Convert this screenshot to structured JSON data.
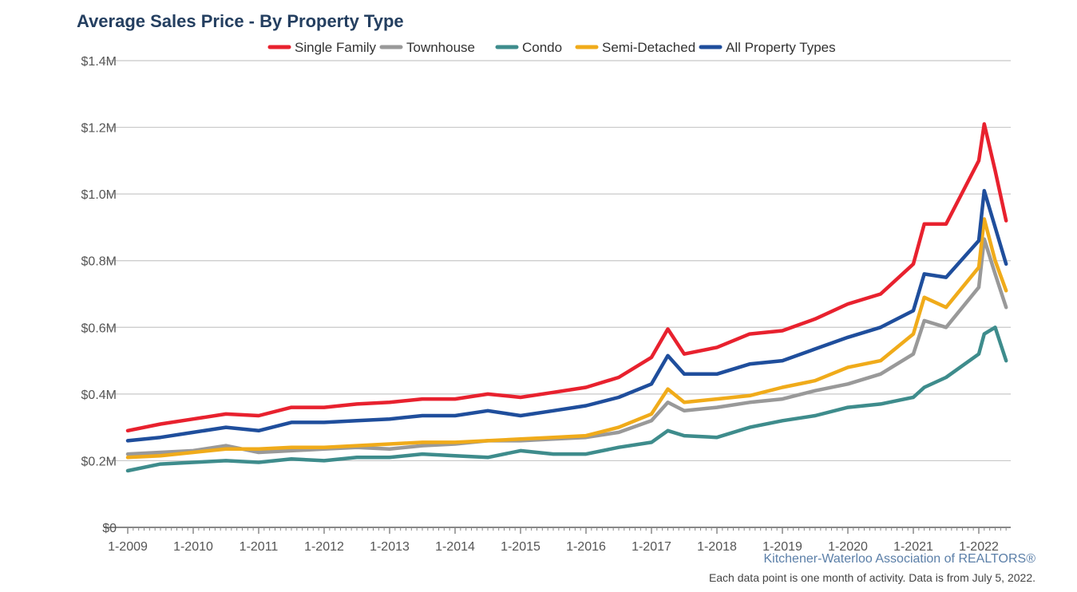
{
  "chart_data": {
    "type": "line",
    "title": "Average Sales Price - By Property Type",
    "source": "Kitchener-Waterloo Association of REALTORS®",
    "note": "Each data point is one month of activity. Data is from July 5, 2022.",
    "y_ticks": [
      "$0",
      "$0.2M",
      "$0.4M",
      "$0.6M",
      "$0.8M",
      "$1.0M",
      "$1.2M",
      "$1.4M"
    ],
    "x_ticks": [
      "1-2009",
      "1-2010",
      "1-2011",
      "1-2012",
      "1-2013",
      "1-2014",
      "1-2015",
      "1-2016",
      "1-2017",
      "1-2018",
      "1-2019",
      "1-2020",
      "1-2021",
      "1-2022"
    ],
    "ylim": [
      0,
      1400000
    ],
    "x_range": [
      "2009-01",
      "2022-06"
    ],
    "grid": true,
    "legend_position": "top-center",
    "series": [
      {
        "name": "Single Family",
        "color": "#e8212e",
        "points": [
          [
            "2009-01",
            290000
          ],
          [
            "2009-07",
            310000
          ],
          [
            "2010-01",
            325000
          ],
          [
            "2010-07",
            340000
          ],
          [
            "2011-01",
            335000
          ],
          [
            "2011-07",
            360000
          ],
          [
            "2012-01",
            360000
          ],
          [
            "2012-07",
            370000
          ],
          [
            "2013-01",
            375000
          ],
          [
            "2013-07",
            385000
          ],
          [
            "2014-01",
            385000
          ],
          [
            "2014-07",
            400000
          ],
          [
            "2015-01",
            390000
          ],
          [
            "2015-07",
            405000
          ],
          [
            "2016-01",
            420000
          ],
          [
            "2016-07",
            450000
          ],
          [
            "2017-01",
            510000
          ],
          [
            "2017-04",
            595000
          ],
          [
            "2017-07",
            520000
          ],
          [
            "2018-01",
            540000
          ],
          [
            "2018-07",
            580000
          ],
          [
            "2019-01",
            590000
          ],
          [
            "2019-07",
            625000
          ],
          [
            "2020-01",
            670000
          ],
          [
            "2020-07",
            700000
          ],
          [
            "2021-01",
            790000
          ],
          [
            "2021-03",
            910000
          ],
          [
            "2021-07",
            910000
          ],
          [
            "2022-01",
            1100000
          ],
          [
            "2022-02",
            1210000
          ],
          [
            "2022-04",
            1070000
          ],
          [
            "2022-06",
            920000
          ]
        ]
      },
      {
        "name": "Townhouse",
        "color": "#999999",
        "points": [
          [
            "2009-01",
            220000
          ],
          [
            "2009-07",
            225000
          ],
          [
            "2010-01",
            230000
          ],
          [
            "2010-07",
            245000
          ],
          [
            "2011-01",
            225000
          ],
          [
            "2011-07",
            230000
          ],
          [
            "2012-01",
            235000
          ],
          [
            "2012-07",
            240000
          ],
          [
            "2013-01",
            235000
          ],
          [
            "2013-07",
            245000
          ],
          [
            "2014-01",
            250000
          ],
          [
            "2014-07",
            260000
          ],
          [
            "2015-01",
            260000
          ],
          [
            "2015-07",
            265000
          ],
          [
            "2016-01",
            270000
          ],
          [
            "2016-07",
            285000
          ],
          [
            "2017-01",
            320000
          ],
          [
            "2017-04",
            375000
          ],
          [
            "2017-07",
            350000
          ],
          [
            "2018-01",
            360000
          ],
          [
            "2018-07",
            375000
          ],
          [
            "2019-01",
            385000
          ],
          [
            "2019-07",
            410000
          ],
          [
            "2020-01",
            430000
          ],
          [
            "2020-07",
            460000
          ],
          [
            "2021-01",
            520000
          ],
          [
            "2021-03",
            620000
          ],
          [
            "2021-07",
            600000
          ],
          [
            "2022-01",
            720000
          ],
          [
            "2022-02",
            865000
          ],
          [
            "2022-04",
            760000
          ],
          [
            "2022-06",
            660000
          ]
        ]
      },
      {
        "name": "Condo",
        "color": "#3e8c8c",
        "points": [
          [
            "2009-01",
            170000
          ],
          [
            "2009-07",
            190000
          ],
          [
            "2010-01",
            195000
          ],
          [
            "2010-07",
            200000
          ],
          [
            "2011-01",
            195000
          ],
          [
            "2011-07",
            205000
          ],
          [
            "2012-01",
            200000
          ],
          [
            "2012-07",
            210000
          ],
          [
            "2013-01",
            210000
          ],
          [
            "2013-07",
            220000
          ],
          [
            "2014-01",
            215000
          ],
          [
            "2014-07",
            210000
          ],
          [
            "2015-01",
            230000
          ],
          [
            "2015-07",
            220000
          ],
          [
            "2016-01",
            220000
          ],
          [
            "2016-07",
            240000
          ],
          [
            "2017-01",
            255000
          ],
          [
            "2017-04",
            290000
          ],
          [
            "2017-07",
            275000
          ],
          [
            "2018-01",
            270000
          ],
          [
            "2018-07",
            300000
          ],
          [
            "2019-01",
            320000
          ],
          [
            "2019-07",
            335000
          ],
          [
            "2020-01",
            360000
          ],
          [
            "2020-07",
            370000
          ],
          [
            "2021-01",
            390000
          ],
          [
            "2021-03",
            420000
          ],
          [
            "2021-07",
            450000
          ],
          [
            "2022-01",
            520000
          ],
          [
            "2022-02",
            580000
          ],
          [
            "2022-04",
            600000
          ],
          [
            "2022-06",
            500000
          ]
        ]
      },
      {
        "name": "Semi-Detached",
        "color": "#f0ab1a",
        "points": [
          [
            "2009-01",
            210000
          ],
          [
            "2009-07",
            215000
          ],
          [
            "2010-01",
            225000
          ],
          [
            "2010-07",
            235000
          ],
          [
            "2011-01",
            235000
          ],
          [
            "2011-07",
            240000
          ],
          [
            "2012-01",
            240000
          ],
          [
            "2012-07",
            245000
          ],
          [
            "2013-01",
            250000
          ],
          [
            "2013-07",
            255000
          ],
          [
            "2014-01",
            255000
          ],
          [
            "2014-07",
            260000
          ],
          [
            "2015-01",
            265000
          ],
          [
            "2015-07",
            270000
          ],
          [
            "2016-01",
            275000
          ],
          [
            "2016-07",
            300000
          ],
          [
            "2017-01",
            340000
          ],
          [
            "2017-04",
            415000
          ],
          [
            "2017-07",
            375000
          ],
          [
            "2018-01",
            385000
          ],
          [
            "2018-07",
            395000
          ],
          [
            "2019-01",
            420000
          ],
          [
            "2019-07",
            440000
          ],
          [
            "2020-01",
            480000
          ],
          [
            "2020-07",
            500000
          ],
          [
            "2021-01",
            580000
          ],
          [
            "2021-03",
            690000
          ],
          [
            "2021-07",
            660000
          ],
          [
            "2022-01",
            780000
          ],
          [
            "2022-02",
            925000
          ],
          [
            "2022-04",
            800000
          ],
          [
            "2022-06",
            710000
          ]
        ]
      },
      {
        "name": "All Property Types",
        "color": "#1f4e9c",
        "points": [
          [
            "2009-01",
            260000
          ],
          [
            "2009-07",
            270000
          ],
          [
            "2010-01",
            285000
          ],
          [
            "2010-07",
            300000
          ],
          [
            "2011-01",
            290000
          ],
          [
            "2011-07",
            315000
          ],
          [
            "2012-01",
            315000
          ],
          [
            "2012-07",
            320000
          ],
          [
            "2013-01",
            325000
          ],
          [
            "2013-07",
            335000
          ],
          [
            "2014-01",
            335000
          ],
          [
            "2014-07",
            350000
          ],
          [
            "2015-01",
            335000
          ],
          [
            "2015-07",
            350000
          ],
          [
            "2016-01",
            365000
          ],
          [
            "2016-07",
            390000
          ],
          [
            "2017-01",
            430000
          ],
          [
            "2017-04",
            515000
          ],
          [
            "2017-07",
            460000
          ],
          [
            "2018-01",
            460000
          ],
          [
            "2018-07",
            490000
          ],
          [
            "2019-01",
            500000
          ],
          [
            "2019-07",
            535000
          ],
          [
            "2020-01",
            570000
          ],
          [
            "2020-07",
            600000
          ],
          [
            "2021-01",
            650000
          ],
          [
            "2021-03",
            760000
          ],
          [
            "2021-07",
            750000
          ],
          [
            "2022-01",
            860000
          ],
          [
            "2022-02",
            1010000
          ],
          [
            "2022-04",
            900000
          ],
          [
            "2022-06",
            790000
          ]
        ]
      }
    ]
  }
}
